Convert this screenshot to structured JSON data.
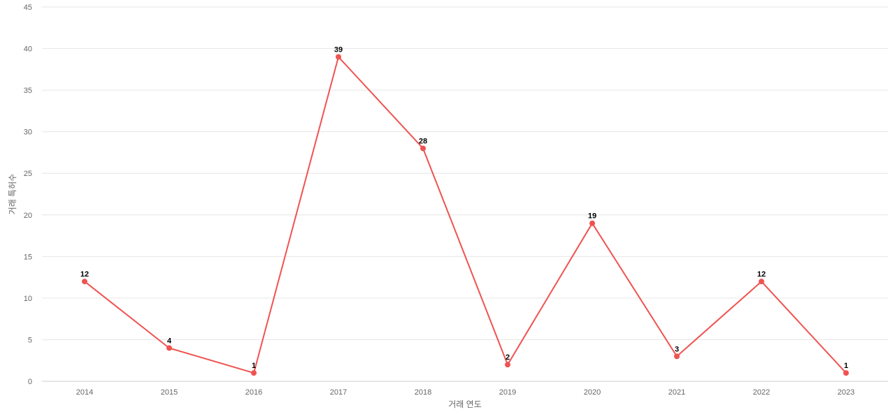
{
  "chart_data": {
    "type": "line",
    "title": "",
    "xlabel": "거래 연도",
    "ylabel": "거래 특허수",
    "categories": [
      "2014",
      "2015",
      "2016",
      "2017",
      "2018",
      "2019",
      "2020",
      "2021",
      "2022",
      "2023"
    ],
    "series": [
      {
        "values": [
          12,
          4,
          1,
          39,
          28,
          2,
          19,
          3,
          12,
          1
        ],
        "color": "#ef5350"
      }
    ],
    "ylim": [
      0,
      45
    ],
    "yticks": [
      "0",
      "5",
      "10",
      "15",
      "20",
      "25",
      "30",
      "35",
      "40",
      "45"
    ],
    "grid": true,
    "legend": "none",
    "show_data_labels": true
  }
}
